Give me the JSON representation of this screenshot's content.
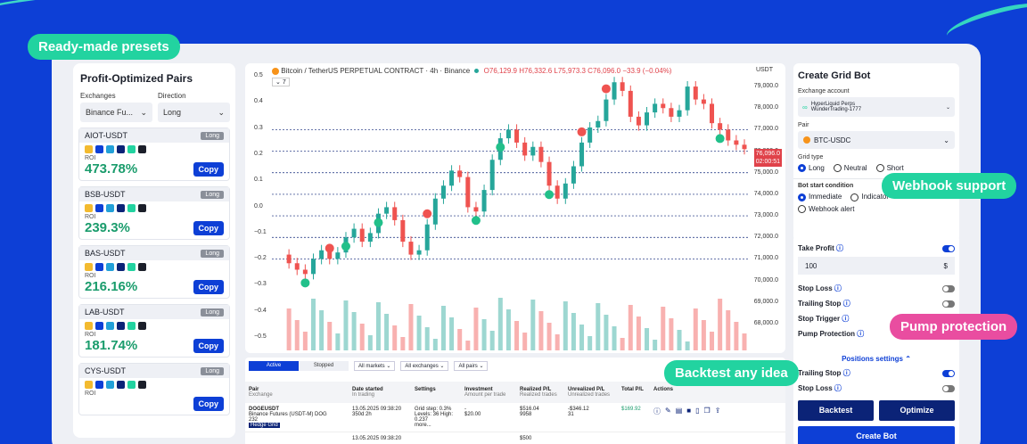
{
  "badges": {
    "presets": "Ready-made presets",
    "webhook": "Webhook support",
    "pump": "Pump protection",
    "backtest": "Backtest any idea"
  },
  "left": {
    "title": "Profit-Optimized Pairs",
    "exchanges_label": "Exchanges",
    "exchange_value": "Binance Fu...",
    "direction_label": "Direction",
    "direction_value": "Long",
    "roi_label": "ROI",
    "copy_label": "Copy",
    "pairs": [
      {
        "name": "AIOT-USDT",
        "dir": "Long",
        "roi": "473.78%"
      },
      {
        "name": "BSB-USDT",
        "dir": "Long",
        "roi": "239.3%"
      },
      {
        "name": "BAS-USDT",
        "dir": "Long",
        "roi": "216.16%"
      },
      {
        "name": "LAB-USDT",
        "dir": "Long",
        "roi": "181.74%"
      },
      {
        "name": "CYS-USDT",
        "dir": "Long",
        "roi": ""
      }
    ]
  },
  "chart": {
    "title": "Bitcoin / TetherUS PERPETUAL CONTRACT · 4h · Binance",
    "ohlc": "O76,129.9 H76,332.6 L75,973.3 C76,096.0 −33.9 (−0.04%)",
    "interval": "7",
    "currency": "USDT",
    "current_price": "76,096.0",
    "countdown": "02:00:51",
    "left_ticks": [
      "0.5",
      "0.4",
      "0.3",
      "0.2",
      "0.1",
      "0.0",
      "−0.1",
      "−0.2",
      "−0.3",
      "−0.4",
      "−0.5"
    ],
    "right_ticks": [
      "79,000.0",
      "78,000.0",
      "77,000.0",
      "76,000.0",
      "75,000.0",
      "74,000.0",
      "73,000.0",
      "72,000.0",
      "71,000.0",
      "70,000.0",
      "69,000.0",
      "68,000.0"
    ],
    "colors": {
      "up": "#26a69a",
      "down": "#ef5350"
    }
  },
  "chart_data": {
    "type": "line",
    "series": [
      {
        "values": [
          71200,
          70800,
          70500,
          70300,
          71000,
          71400,
          71000,
          71300,
          72000,
          72400,
          71800,
          72200,
          73100,
          73400,
          72800,
          71800,
          71200,
          71400,
          72600,
          73800,
          74400,
          75100,
          74800,
          73400,
          73200,
          74200,
          75600,
          76600,
          77000,
          76400,
          75800,
          76200,
          75500,
          74400,
          73800,
          74500,
          75300,
          76400,
          77100,
          77400,
          78400,
          79200,
          78800,
          77600,
          77200,
          77800,
          78200,
          78000,
          77600,
          77900,
          79000,
          78400,
          78200,
          77300,
          77000,
          76500,
          76300,
          76096
        ]
      }
    ],
    "ylim": [
      67500,
      79500
    ]
  },
  "table": {
    "tab_active": "Active",
    "tab_stopped": "Stopped",
    "filter_markets": "All markets",
    "filter_exchanges": "All exchanges",
    "filter_pairs": "All pairs",
    "headers": [
      "Pair",
      "Date started",
      "Settings",
      "Investment",
      "Realized P/L",
      "Unrealized P/L",
      "Total P/L",
      "Actions"
    ],
    "subheaders": [
      "Exchange",
      "In trading",
      "",
      "Amount per trade",
      "Realized trades",
      "Unrealized trades",
      "",
      ""
    ],
    "row": {
      "pair": "DOGEUSDT",
      "exchange": "Binance Futures (USDT-M) DOG",
      "sub": "232",
      "badge": "Hedge Grid",
      "date": "13.05.2025 09:38:20",
      "days": "350d 2h",
      "settings": "Grid step: 0.3% Levels: 36 High: 0.237",
      "more": "more...",
      "investment": "-",
      "invest_amt": "$20.00",
      "realized": "$516.04",
      "realized_trades": "9958",
      "unrealized": "-$346.12",
      "unrealized_trades": "31",
      "total": "$169.92"
    },
    "row2_date": "13.05.2025 09:38:20",
    "row2_realized": "$500"
  },
  "create": {
    "title": "Create Grid Bot",
    "exchange_label": "Exchange account",
    "exchange_line1": "HyperLiquid Perps",
    "exchange_line2": "WunderTrading-1777",
    "pair_label": "Pair",
    "pair_value": "BTC-USDC",
    "grid_type_label": "Grid type",
    "grid_types": [
      "Long",
      "Neutral",
      "Short"
    ],
    "condition_label": "Bot start condition",
    "conditions": [
      "Immediate",
      "Indicator",
      "Webhook alert"
    ],
    "take_profit": "Take Profit",
    "take_profit_value": "100",
    "take_profit_unit": "$",
    "stop_loss": "Stop Loss",
    "trailing_stop": "Trailing Stop",
    "stop_trigger": "Stop Trigger",
    "pump_protection": "Pump Protection",
    "positions_settings": "Positions settings",
    "pos_trailing_stop": "Trailing Stop",
    "pos_stop_loss": "Stop Loss",
    "backtest": "Backtest",
    "optimize": "Optimize",
    "create_bot": "Create Bot"
  }
}
